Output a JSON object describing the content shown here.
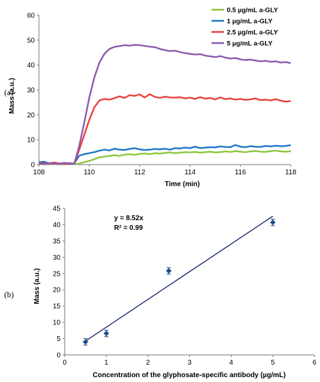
{
  "chart_data": [
    {
      "type": "line",
      "panel_label": "(a)",
      "xlabel": "Time (min)",
      "ylabel": "Mass (a.u.)",
      "xlim": [
        108,
        118
      ],
      "ylim": [
        0,
        60
      ],
      "xticks": [
        "108",
        "110",
        "112",
        "114",
        "116",
        "118"
      ],
      "yticks": [
        "0",
        "10",
        "20",
        "30",
        "40",
        "50",
        "60"
      ],
      "grid": false,
      "legend_position": "top-right",
      "series": [
        {
          "name": "0.5 µg/mL a-GLY",
          "color": "#8dc63f",
          "x": [
            108.0,
            108.2,
            108.4,
            108.6,
            108.8,
            109.0,
            109.2,
            109.4,
            109.6,
            109.8,
            110.0,
            110.2,
            110.4,
            110.6,
            110.8,
            111.0,
            111.2,
            111.4,
            111.6,
            111.8,
            112.0,
            112.2,
            112.4,
            112.6,
            112.8,
            113.0,
            113.2,
            113.4,
            113.6,
            113.8,
            114.0,
            114.2,
            114.4,
            114.6,
            114.8,
            115.0,
            115.2,
            115.4,
            115.6,
            115.8,
            116.0,
            116.2,
            116.4,
            116.6,
            116.8,
            117.0,
            117.2,
            117.4,
            117.6,
            117.8,
            118.0
          ],
          "y": [
            1.3,
            0.6,
            0.3,
            0.4,
            0.2,
            0.5,
            0.3,
            0.2,
            0.4,
            1.0,
            1.5,
            2.2,
            2.9,
            3.2,
            3.5,
            3.8,
            3.5,
            4.0,
            4.2,
            3.9,
            4.3,
            4.5,
            4.2,
            4.6,
            4.4,
            4.7,
            4.9,
            4.6,
            4.8,
            5.0,
            4.9,
            5.1,
            4.8,
            5.0,
            5.2,
            4.9,
            5.0,
            5.3,
            5.1,
            5.4,
            5.2,
            5.0,
            5.3,
            5.5,
            5.2,
            5.1,
            5.4,
            5.6,
            5.3,
            5.2,
            5.4
          ]
        },
        {
          "name": "1 µg/mL a-GLY",
          "color": "#1f78c8",
          "x": [
            108.0,
            108.2,
            108.4,
            108.6,
            108.8,
            109.0,
            109.2,
            109.4,
            109.6,
            109.8,
            110.0,
            110.2,
            110.4,
            110.6,
            110.8,
            111.0,
            111.2,
            111.4,
            111.6,
            111.8,
            112.0,
            112.2,
            112.4,
            112.6,
            112.8,
            113.0,
            113.2,
            113.4,
            113.6,
            113.8,
            114.0,
            114.2,
            114.4,
            114.6,
            114.8,
            115.0,
            115.2,
            115.4,
            115.6,
            115.8,
            116.0,
            116.2,
            116.4,
            116.6,
            116.8,
            117.0,
            117.2,
            117.4,
            117.6,
            117.8,
            118.0
          ],
          "y": [
            0.8,
            1.2,
            0.5,
            0.8,
            0.4,
            0.6,
            0.3,
            0.5,
            3.6,
            4.2,
            4.6,
            5.0,
            5.6,
            6.0,
            5.7,
            6.4,
            6.0,
            5.9,
            6.3,
            6.6,
            6.1,
            5.9,
            6.0,
            6.3,
            6.1,
            6.4,
            6.0,
            6.6,
            6.5,
            6.8,
            6.6,
            7.2,
            6.6,
            6.8,
            7.0,
            6.9,
            7.3,
            7.1,
            7.0,
            7.9,
            7.2,
            7.0,
            7.4,
            7.2,
            7.1,
            7.5,
            7.3,
            7.6,
            7.4,
            7.5,
            7.8
          ]
        },
        {
          "name": "2.5 µg/mL a-GLY",
          "color": "#e8413a",
          "x": [
            108.0,
            108.2,
            108.4,
            108.6,
            108.8,
            109.0,
            109.2,
            109.4,
            109.6,
            109.8,
            110.0,
            110.2,
            110.4,
            110.6,
            110.8,
            111.0,
            111.2,
            111.4,
            111.6,
            111.8,
            112.0,
            112.2,
            112.4,
            112.6,
            112.8,
            113.0,
            113.2,
            113.4,
            113.6,
            113.8,
            114.0,
            114.2,
            114.4,
            114.6,
            114.8,
            115.0,
            115.2,
            115.4,
            115.6,
            115.8,
            116.0,
            116.2,
            116.4,
            116.6,
            116.8,
            117.0,
            117.2,
            117.4,
            117.6,
            117.8,
            118.0
          ],
          "y": [
            0.4,
            0.7,
            0.3,
            0.8,
            0.5,
            0.2,
            0.6,
            0.4,
            6.0,
            12.0,
            18.0,
            23.0,
            25.8,
            26.4,
            26.1,
            26.7,
            27.4,
            26.8,
            27.9,
            27.6,
            28.2,
            27.0,
            28.3,
            27.2,
            26.8,
            27.3,
            27.0,
            26.9,
            27.1,
            26.6,
            26.9,
            26.4,
            27.1,
            26.5,
            26.8,
            26.2,
            27.0,
            26.3,
            26.6,
            26.1,
            26.4,
            26.0,
            26.2,
            26.6,
            25.9,
            26.1,
            25.8,
            26.3,
            25.7,
            25.3,
            25.6
          ]
        },
        {
          "name": "5 µg/mL a-GLY",
          "color": "#8b5bb0",
          "x": [
            108.0,
            108.2,
            108.4,
            108.6,
            108.8,
            109.0,
            109.2,
            109.4,
            109.6,
            109.8,
            110.0,
            110.2,
            110.4,
            110.6,
            110.8,
            111.0,
            111.2,
            111.4,
            111.6,
            111.8,
            112.0,
            112.2,
            112.4,
            112.6,
            112.8,
            113.0,
            113.2,
            113.4,
            113.6,
            113.8,
            114.0,
            114.2,
            114.4,
            114.6,
            114.8,
            115.0,
            115.2,
            115.4,
            115.6,
            115.8,
            116.0,
            116.2,
            116.4,
            116.6,
            116.8,
            117.0,
            117.2,
            117.4,
            117.6,
            117.8,
            118.0
          ],
          "y": [
            0.5,
            0.3,
            0.6,
            0.4,
            0.2,
            0.7,
            0.5,
            0.3,
            7.5,
            17.0,
            27.0,
            35.0,
            41.0,
            44.5,
            46.5,
            47.3,
            47.6,
            48.0,
            47.8,
            48.1,
            48.0,
            47.7,
            47.4,
            47.2,
            46.5,
            46.0,
            45.6,
            45.8,
            45.2,
            44.8,
            44.5,
            44.2,
            44.4,
            43.8,
            43.5,
            43.2,
            43.6,
            43.0,
            42.6,
            42.8,
            42.3,
            42.0,
            42.2,
            41.8,
            41.5,
            41.7,
            41.3,
            41.5,
            41.0,
            41.2,
            40.8
          ]
        }
      ]
    },
    {
      "type": "scatter",
      "panel_label": "(b)",
      "xlabel": "Concentration of the glyphosate-specific antibody (µg/mL)",
      "ylabel": "Mass (a.u.)",
      "xlim": [
        0,
        6
      ],
      "ylim": [
        0,
        45
      ],
      "xticks": [
        "0",
        "1",
        "2",
        "3",
        "4",
        "5",
        "6"
      ],
      "yticks": [
        "0",
        "5",
        "10",
        "15",
        "20",
        "25",
        "30",
        "35",
        "40",
        "45"
      ],
      "grid": false,
      "points": {
        "color": "#1f4e8c",
        "x": [
          0.5,
          1.0,
          2.5,
          5.0
        ],
        "y": [
          4.0,
          6.6,
          25.8,
          40.7
        ],
        "yerr": [
          1.0,
          1.0,
          1.0,
          1.0
        ]
      },
      "fit": {
        "color": "#1a2a6c",
        "x": [
          0.5,
          5.0
        ],
        "y": [
          4.26,
          42.6
        ],
        "equation": "y = 8.52x",
        "r_squared": "R² = 0.99"
      }
    }
  ]
}
